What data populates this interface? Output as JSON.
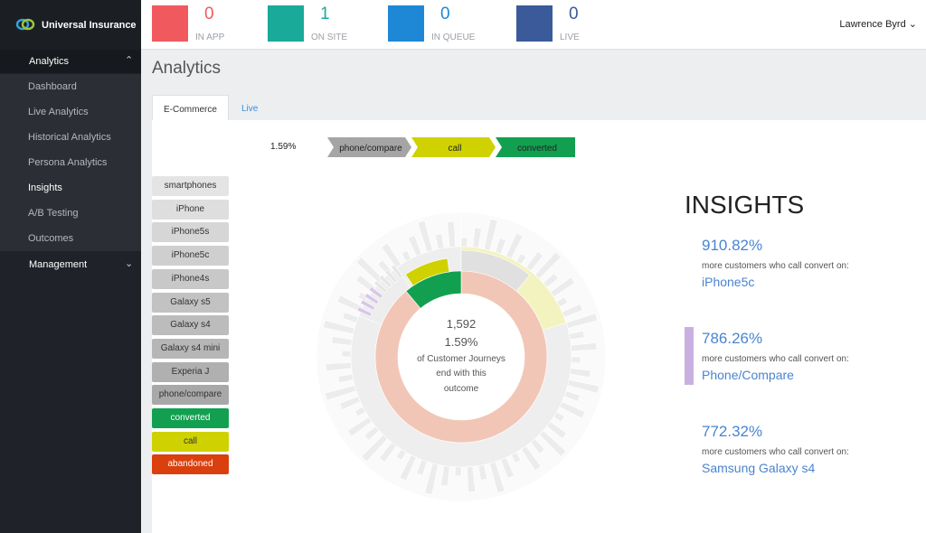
{
  "brand": "Universal Insurance",
  "nav": [
    {
      "label": "Analytics",
      "items": [
        "Dashboard",
        "Live Analytics",
        "Historical Analytics",
        "Persona Analytics",
        "Insights",
        "A/B Testing",
        "Outcomes"
      ],
      "active": 4
    },
    {
      "label": "Management",
      "items": []
    }
  ],
  "stats": [
    {
      "value": 0,
      "label": "IN APP",
      "color": "#f05a5f"
    },
    {
      "value": 1,
      "label": "ON SITE",
      "color": "#1aaa9a"
    },
    {
      "value": 0,
      "label": "IN QUEUE",
      "color": "#1e88d6"
    },
    {
      "value": 0,
      "label": "LIVE",
      "color": "#3b5a9a"
    }
  ],
  "user": "Lawrence Byrd",
  "page_title": "Analytics",
  "tabs": [
    "E-Commerce",
    "Live"
  ],
  "breadcrumb": {
    "percent": "1.59%",
    "steps": [
      "phone/compare",
      "call",
      "converted"
    ]
  },
  "legend": [
    {
      "label": "smartphones",
      "color": "#e4e4e4"
    },
    {
      "label": "iPhone",
      "color": "#dedede"
    },
    {
      "label": "iPhone5s",
      "color": "#d6d6d6"
    },
    {
      "label": "iPhone5c",
      "color": "#cfcfcf"
    },
    {
      "label": "iPhone4s",
      "color": "#c8c8c8"
    },
    {
      "label": "Galaxy s5",
      "color": "#c2c2c2"
    },
    {
      "label": "Galaxy s4",
      "color": "#bcbcbc"
    },
    {
      "label": "Galaxy s4 mini",
      "color": "#b6b6b6"
    },
    {
      "label": "Experia J",
      "color": "#b0b0b0"
    },
    {
      "label": "phone/compare",
      "color": "#a8a8a8"
    },
    {
      "label": "converted",
      "color": "#12a050"
    },
    {
      "label": "call",
      "color": "#cfd200"
    },
    {
      "label": "abandoned",
      "color": "#d9400e"
    }
  ],
  "center": {
    "count": "1,592",
    "percent": "1.59%",
    "caption": [
      "of Customer Journeys",
      "end with this",
      "outcome"
    ]
  },
  "insights": {
    "title": "INSIGHTS",
    "items": [
      {
        "percent": "910.82%",
        "text": "more customers who call convert on:",
        "target": "iPhone5c"
      },
      {
        "percent": "786.26%",
        "text": "more customers who call convert on:",
        "target": "Phone/Compare"
      },
      {
        "percent": "772.32%",
        "text": "more customers who call convert on:",
        "target": "Samsung Galaxy s4"
      }
    ]
  }
}
